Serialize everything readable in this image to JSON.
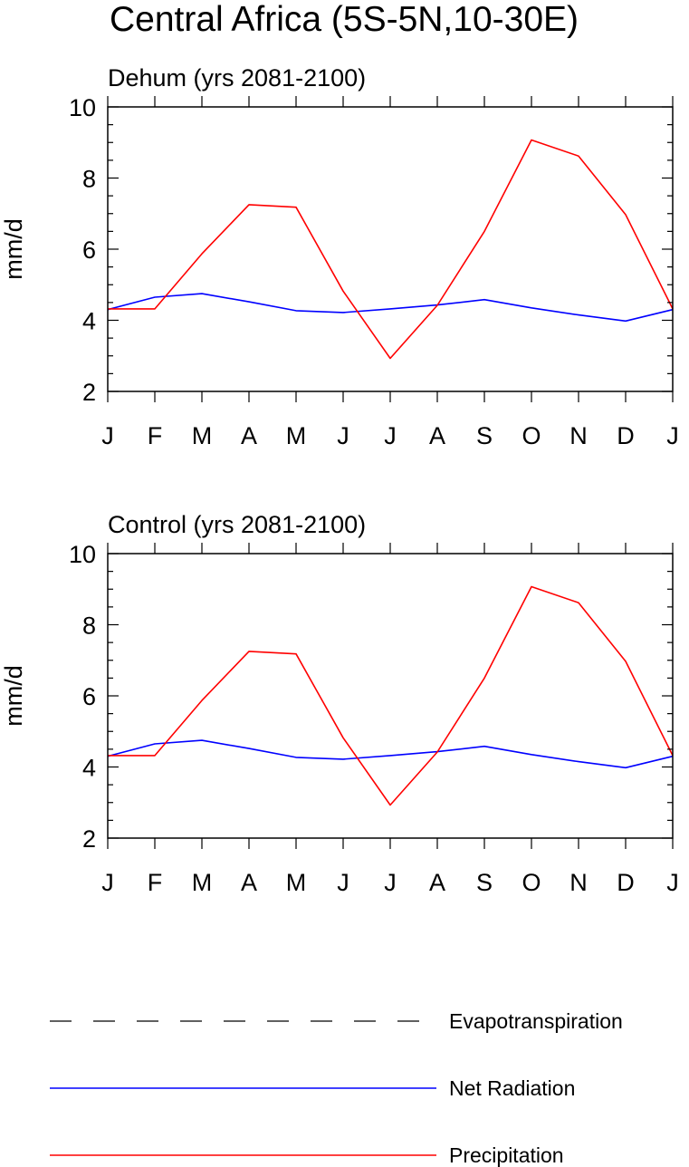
{
  "title": "Central Africa (5S-5N,10-30E)",
  "colors": {
    "evapotranspiration": "#000000",
    "net_radiation": "#0000ff",
    "precipitation": "#ff0000"
  },
  "legend": {
    "items": [
      {
        "key": "evapotranspiration",
        "label": "Evapotranspiration",
        "style": "dashed"
      },
      {
        "key": "net_radiation",
        "label": "Net Radiation",
        "style": "solid"
      },
      {
        "key": "precipitation",
        "label": "Precipitation",
        "style": "solid"
      }
    ]
  },
  "chart_data": [
    {
      "type": "line",
      "title": "Dehum (yrs 2081-2100)",
      "ylabel": "mm/d",
      "xlabel": "",
      "categories": [
        "J",
        "F",
        "M",
        "A",
        "M",
        "J",
        "J",
        "A",
        "S",
        "O",
        "N",
        "D",
        "J"
      ],
      "ylim": [
        2,
        10
      ],
      "yticks": [
        2,
        4,
        6,
        8,
        10
      ],
      "grid": false,
      "series": [
        {
          "key": "net_radiation",
          "name": "Net Radiation",
          "values": [
            4.3,
            4.65,
            4.75,
            4.52,
            4.27,
            4.22,
            4.32,
            4.43,
            4.58,
            4.35,
            4.15,
            3.98,
            4.3
          ]
        },
        {
          "key": "precipitation",
          "name": "Precipitation",
          "values": [
            4.32,
            4.32,
            5.87,
            7.25,
            7.18,
            4.82,
            2.93,
            4.42,
            6.5,
            9.07,
            8.62,
            6.97,
            4.32
          ]
        }
      ]
    },
    {
      "type": "line",
      "title": "Control (yrs 2081-2100)",
      "ylabel": "mm/d",
      "xlabel": "",
      "categories": [
        "J",
        "F",
        "M",
        "A",
        "M",
        "J",
        "J",
        "A",
        "S",
        "O",
        "N",
        "D",
        "J"
      ],
      "ylim": [
        2,
        10
      ],
      "yticks": [
        2,
        4,
        6,
        8,
        10
      ],
      "grid": false,
      "series": [
        {
          "key": "net_radiation",
          "name": "Net Radiation",
          "values": [
            4.3,
            4.65,
            4.75,
            4.52,
            4.27,
            4.22,
            4.32,
            4.43,
            4.58,
            4.35,
            4.15,
            3.98,
            4.3
          ]
        },
        {
          "key": "precipitation",
          "name": "Precipitation",
          "values": [
            4.32,
            4.32,
            5.87,
            7.25,
            7.18,
            4.82,
            2.93,
            4.42,
            6.5,
            9.07,
            8.62,
            6.97,
            4.32
          ]
        }
      ]
    }
  ]
}
